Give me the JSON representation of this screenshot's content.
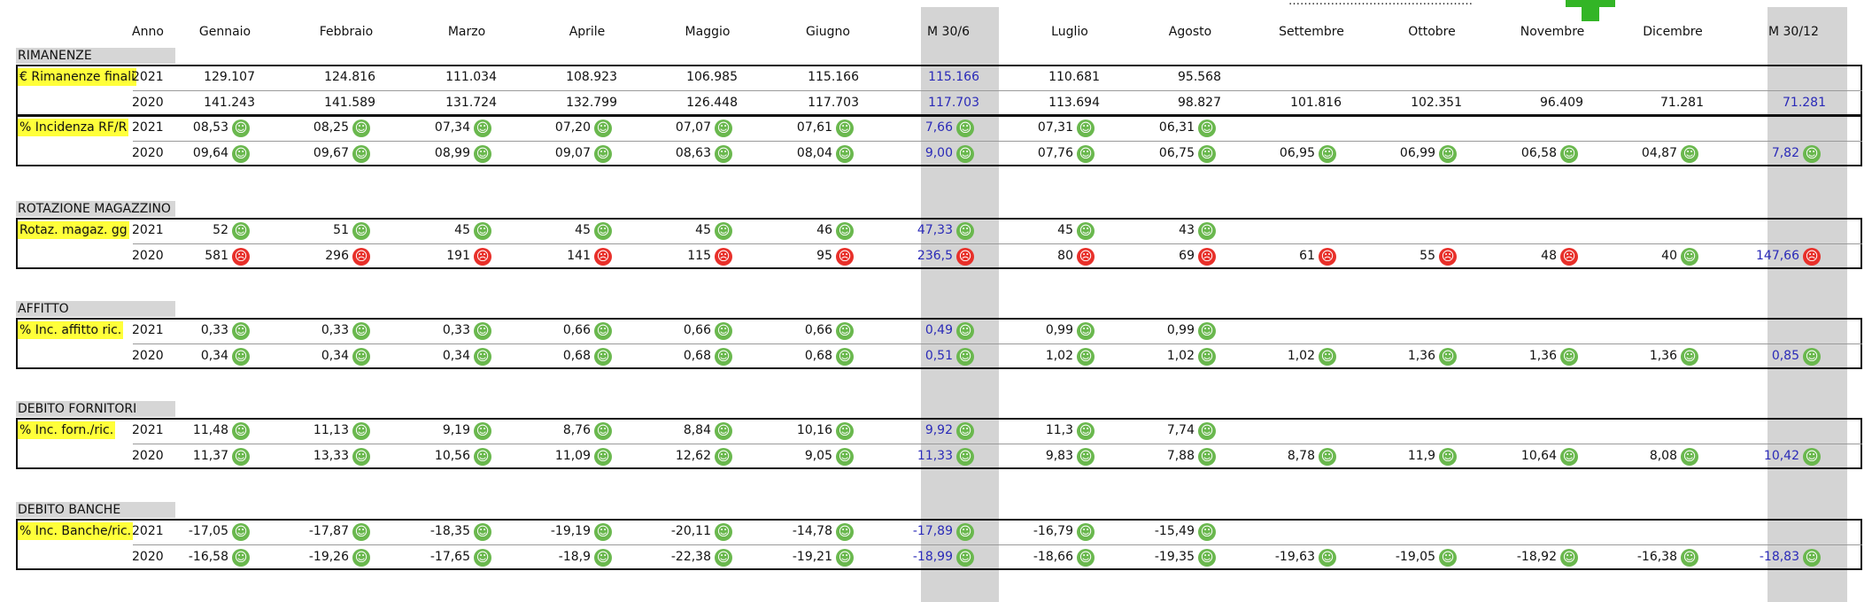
{
  "header": {
    "anno": "Anno",
    "months": [
      "Gennaio",
      "Febbraio",
      "Marzo",
      "Aprile",
      "Maggio",
      "Giugno",
      "M 30/6",
      "Luglio",
      "Agosto",
      "Settembre",
      "Ottobre",
      "Novembre",
      "Dicembre",
      "M 30/12"
    ]
  },
  "top_partial_text": "…………………………………………",
  "sections": [
    {
      "title": "RIMANENZE",
      "rows": [
        {
          "label": "€ Rimanenze finali",
          "year": "2021",
          "values": [
            "129.107",
            "124.816",
            "111.034",
            "108.923",
            "106.985",
            "115.166",
            "115.166",
            "110.681",
            "95.568",
            "",
            "",
            "",
            "",
            ""
          ],
          "icons": [
            "",
            "",
            "",
            "",
            "",
            "",
            "",
            "",
            "",
            "",
            "",
            "",
            "",
            ""
          ]
        },
        {
          "label": "",
          "year": "2020",
          "values": [
            "141.243",
            "141.589",
            "131.724",
            "132.799",
            "126.448",
            "117.703",
            "117.703",
            "113.694",
            "98.827",
            "101.816",
            "102.351",
            "96.409",
            "71.281",
            "71.281"
          ],
          "icons": [
            "",
            "",
            "",
            "",
            "",
            "",
            "",
            "",
            "",
            "",
            "",
            "",
            "",
            ""
          ]
        },
        {
          "label": "% Incidenza RF/R",
          "year": "2021",
          "values": [
            "08,53",
            "08,25",
            "07,34",
            "07,20",
            "07,07",
            "07,61",
            "7,66",
            "07,31",
            "06,31",
            "",
            "",
            "",
            "",
            ""
          ],
          "icons": [
            "s",
            "s",
            "s",
            "s",
            "s",
            "s",
            "s",
            "s",
            "s",
            "",
            "",
            "",
            "",
            ""
          ]
        },
        {
          "label": "",
          "year": "2020",
          "values": [
            "09,64",
            "09,67",
            "08,99",
            "09,07",
            "08,63",
            "08,04",
            "9,00",
            "07,76",
            "06,75",
            "06,95",
            "06,99",
            "06,58",
            "04,87",
            "7,82"
          ],
          "icons": [
            "s",
            "s",
            "s",
            "s",
            "s",
            "s",
            "s",
            "s",
            "s",
            "s",
            "s",
            "s",
            "s",
            "s"
          ]
        }
      ]
    },
    {
      "title": "ROTAZIONE MAGAZZINO",
      "rows": [
        {
          "label": "Rotaz. magaz. gg",
          "year": "2021",
          "values": [
            "52",
            "51",
            "45",
            "45",
            "45",
            "46",
            "47,33",
            "45",
            "43",
            "",
            "",
            "",
            "",
            ""
          ],
          "icons": [
            "s",
            "s",
            "s",
            "s",
            "s",
            "s",
            "s",
            "s",
            "s",
            "",
            "",
            "",
            "",
            ""
          ]
        },
        {
          "label": "",
          "year": "2020",
          "values": [
            "581",
            "296",
            "191",
            "141",
            "115",
            "95",
            "236,5",
            "80",
            "69",
            "61",
            "55",
            "48",
            "40",
            "147,66"
          ],
          "icons": [
            "f",
            "f",
            "f",
            "f",
            "f",
            "f",
            "f",
            "f",
            "f",
            "f",
            "f",
            "f",
            "s",
            "f"
          ]
        }
      ]
    },
    {
      "title": "AFFITTO",
      "rows": [
        {
          "label": "% Inc. affitto ric.",
          "year": "2021",
          "values": [
            "0,33",
            "0,33",
            "0,33",
            "0,66",
            "0,66",
            "0,66",
            "0,49",
            "0,99",
            "0,99",
            "",
            "",
            "",
            "",
            ""
          ],
          "icons": [
            "s",
            "s",
            "s",
            "s",
            "s",
            "s",
            "s",
            "s",
            "s",
            "",
            "",
            "",
            "",
            ""
          ]
        },
        {
          "label": "",
          "year": "2020",
          "values": [
            "0,34",
            "0,34",
            "0,34",
            "0,68",
            "0,68",
            "0,68",
            "0,51",
            "1,02",
            "1,02",
            "1,02",
            "1,36",
            "1,36",
            "1,36",
            "0,85"
          ],
          "icons": [
            "s",
            "s",
            "s",
            "s",
            "s",
            "s",
            "s",
            "s",
            "s",
            "s",
            "s",
            "s",
            "s",
            "s"
          ]
        }
      ]
    },
    {
      "title": "DEBITO FORNITORI",
      "rows": [
        {
          "label": "% Inc. forn./ric.",
          "year": "2021",
          "values": [
            "11,48",
            "11,13",
            "9,19",
            "8,76",
            "8,84",
            "10,16",
            "9,92",
            "11,3",
            "7,74",
            "",
            "",
            "",
            "",
            ""
          ],
          "icons": [
            "s",
            "s",
            "s",
            "s",
            "s",
            "s",
            "s",
            "s",
            "s",
            "",
            "",
            "",
            "",
            ""
          ]
        },
        {
          "label": "",
          "year": "2020",
          "values": [
            "11,37",
            "13,33",
            "10,56",
            "11,09",
            "12,62",
            "9,05",
            "11,33",
            "9,83",
            "7,88",
            "8,78",
            "11,9",
            "10,64",
            "8,08",
            "10,42"
          ],
          "icons": [
            "s",
            "s",
            "s",
            "s",
            "s",
            "s",
            "s",
            "s",
            "s",
            "s",
            "s",
            "s",
            "s",
            "s"
          ]
        }
      ]
    },
    {
      "title": "DEBITO BANCHE",
      "rows": [
        {
          "label": "% Inc. Banche/ric.",
          "year": "2021",
          "values": [
            "-17,05",
            "-17,87",
            "-18,35",
            "-19,19",
            "-20,11",
            "-14,78",
            "-17,89",
            "-16,79",
            "-15,49",
            "",
            "",
            "",
            "",
            ""
          ],
          "icons": [
            "s",
            "s",
            "s",
            "s",
            "s",
            "s",
            "s",
            "s",
            "s",
            "",
            "",
            "",
            "",
            ""
          ]
        },
        {
          "label": "",
          "year": "2020",
          "values": [
            "-16,58",
            "-19,26",
            "-17,65",
            "-18,9",
            "-22,38",
            "-19,21",
            "-18,99",
            "-18,66",
            "-19,35",
            "-19,63",
            "-19,05",
            "-18,92",
            "-16,38",
            "-18,83"
          ],
          "icons": [
            "s",
            "s",
            "s",
            "s",
            "s",
            "s",
            "s",
            "s",
            "s",
            "s",
            "s",
            "s",
            "s",
            "s"
          ]
        }
      ]
    }
  ],
  "colors": {
    "highlight_yellow": "#ffff3a",
    "summary_column_gray": "#d4d4d4",
    "summary_value_blue": "#2a2ab8",
    "good_green": "#6ab84e",
    "bad_red": "#e8302a"
  },
  "icons": {
    "s": "smiley-face-icon",
    "f": "frowny-face-icon"
  }
}
